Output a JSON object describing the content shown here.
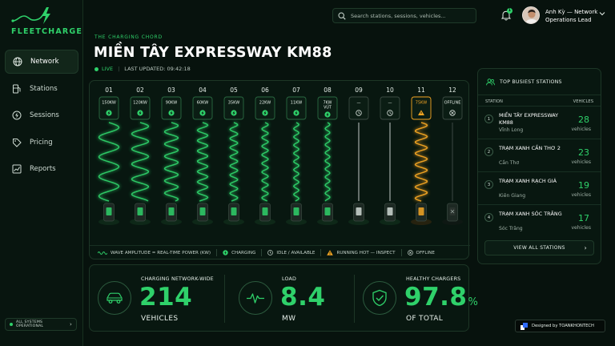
{
  "brand": {
    "name": "FLEETCHARGE"
  },
  "nav": [
    {
      "id": "network",
      "label": "Network",
      "icon": "globe-icon",
      "active": true
    },
    {
      "id": "stations",
      "label": "Stations",
      "icon": "fuel-station-icon",
      "active": false
    },
    {
      "id": "sessions",
      "label": "Sessions",
      "icon": "bolt-icon",
      "active": false
    },
    {
      "id": "pricing",
      "label": "Pricing",
      "icon": "tag-icon",
      "active": false
    },
    {
      "id": "reports",
      "label": "Reports",
      "icon": "chart-icon",
      "active": false
    }
  ],
  "system_status": "ALL SYSTEMS OPERATIONAL",
  "search": {
    "placeholder": "Search stations, sessions, vehicles..."
  },
  "notifications": {
    "count": "1"
  },
  "user": {
    "name": "Anh Kỳ — Network",
    "role": "Operations Lead"
  },
  "header": {
    "eyebrow": "THE CHARGING CHORD",
    "title": "MIỀN TÂY EXPRESSWAY KM88",
    "live_label": "LIVE",
    "updated": "LAST UPDATED: 09:42:18"
  },
  "colors": {
    "accent": "#2fd16a",
    "hot": "#f5a623",
    "idle": "#d9e2dd",
    "background": "#07120d"
  },
  "bays": [
    {
      "number": "01",
      "status": "charging",
      "label": "150KW",
      "power_kw": 150
    },
    {
      "number": "02",
      "status": "charging",
      "label": "120KW",
      "power_kw": 120
    },
    {
      "number": "03",
      "status": "charging",
      "label": "90KW",
      "power_kw": 90
    },
    {
      "number": "04",
      "status": "charging",
      "label": "60KW",
      "power_kw": 60
    },
    {
      "number": "05",
      "status": "charging",
      "label": "35KW",
      "power_kw": 35
    },
    {
      "number": "06",
      "status": "charging",
      "label": "22KW",
      "power_kw": 22
    },
    {
      "number": "07",
      "status": "charging",
      "label": "11KW",
      "power_kw": 11
    },
    {
      "number": "08",
      "status": "charging",
      "label": "7KW VÚT",
      "power_kw": 7
    },
    {
      "number": "09",
      "status": "idle",
      "label": "—",
      "power_kw": 0
    },
    {
      "number": "10",
      "status": "idle",
      "label": "—",
      "power_kw": 0
    },
    {
      "number": "11",
      "status": "hot",
      "label": "75KW",
      "power_kw": 75
    },
    {
      "number": "12",
      "status": "offline",
      "label": "OFFLINE",
      "power_kw": 0
    }
  ],
  "legend": {
    "wave": "WAVE AMPLITUDE = REAL-TIME POWER (KW)",
    "charging": "CHARGING",
    "idle": "IDLE / AVAILABLE",
    "hot": "RUNNING HOT — INSPECT",
    "offline": "OFFLINE"
  },
  "busiest": {
    "title": "TOP BUSIEST STATIONS",
    "col_station": "STATION",
    "col_vehicles": "VEHICLES",
    "rows": [
      {
        "rank": "1",
        "name": "MIỀN TÂY EXPRESSWAY KM88",
        "area": "Vĩnh Long",
        "count": "28",
        "unit": "vehicles"
      },
      {
        "rank": "2",
        "name": "TRẠM XANH CẦN THƠ 2",
        "area": "Cần Thơ",
        "count": "23",
        "unit": "vehicles"
      },
      {
        "rank": "3",
        "name": "TRẠM XANH RẠCH GIÁ",
        "area": "Kiên Giang",
        "count": "19",
        "unit": "vehicles"
      },
      {
        "rank": "4",
        "name": "TRẠM XANH SÓC TRĂNG",
        "area": "Sóc Trăng",
        "count": "17",
        "unit": "vehicles"
      }
    ],
    "view_all": "VIEW ALL STATIONS"
  },
  "stats": [
    {
      "label": "CHARGING NETWORK-WIDE",
      "value": "214",
      "suffix": "",
      "unit": "VEHICLES",
      "icon": "car-icon"
    },
    {
      "label": "LOAD",
      "value": "8.4",
      "suffix": "",
      "unit": "MW",
      "icon": "pulse-icon"
    },
    {
      "label": "HEALTHY CHARGERS",
      "value": "97.8",
      "suffix": "%",
      "unit": "OF TOTAL",
      "icon": "shield-check-icon"
    }
  ],
  "credit": "Designed by TOANKHONTECH"
}
